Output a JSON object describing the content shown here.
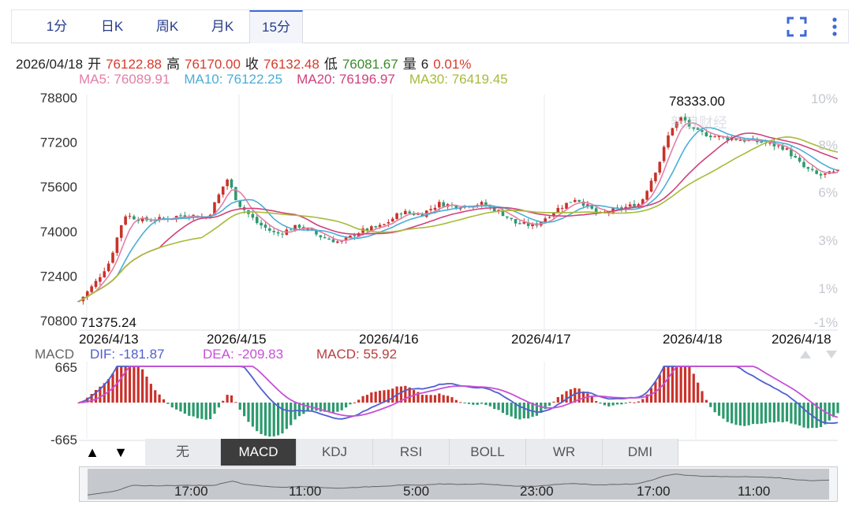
{
  "tabs": [
    {
      "label": "1分",
      "active": false
    },
    {
      "label": "日K",
      "active": false
    },
    {
      "label": "周K",
      "active": false
    },
    {
      "label": "月K",
      "active": false
    },
    {
      "label": "15分",
      "active": true
    }
  ],
  "toolbar": {
    "expand_icon": "expand-icon",
    "more_icon": "more-vertical-icon"
  },
  "info": {
    "date": "2026/04/18",
    "open_label": "开",
    "open": "76122.88",
    "high_label": "高",
    "high": "76170.00",
    "close_label": "收",
    "close": "76132.48",
    "low_label": "低",
    "low": "76081.67",
    "vol_label": "量",
    "vol": "6",
    "change": "0.01%"
  },
  "ma": [
    {
      "label": "MA5: 76089.91",
      "color": "#e27fa6"
    },
    {
      "label": "MA10: 76122.25",
      "color": "#4aaed8"
    },
    {
      "label": "MA20: 76196.97",
      "color": "#d0417a"
    },
    {
      "label": "MA30: 76419.45",
      "color": "#a8bb3a"
    }
  ],
  "macd_header": {
    "label": "MACD",
    "dif": "DIF: -181.87",
    "dea": "DEA: -209.83",
    "macd": "MACD: 55.92",
    "dif_color": "#4f5fd0",
    "dea_color": "#c84fd8",
    "macd_color": "#b83e3e"
  },
  "indicator_buttons": [
    "无",
    "MACD",
    "KDJ",
    "RSI",
    "BOLL",
    "WR",
    "DMI"
  ],
  "active_indicator": "MACD",
  "arrows": {
    "up": "▲",
    "down": "▼"
  },
  "navigator_labels": [
    "17:00",
    "11:00",
    "5:00",
    "23:00",
    "17:00",
    "11:00"
  ],
  "chart_data": [
    {
      "type": "candlestick",
      "title": "",
      "y_ticks": [
        78800,
        77200,
        75600,
        74000,
        72400,
        70800
      ],
      "y_labels": [
        "78800",
        "77200",
        "75600",
        "74000",
        "72400",
        "70800"
      ],
      "ylim": [
        70800,
        78800
      ],
      "right_ticks": [
        "10%",
        "8%",
        "6%",
        "3%",
        "1%",
        "-1%"
      ],
      "x_labels": [
        "2026/4/13",
        "2026/4/15",
        "2026/4/16",
        "2026/4/17",
        "2026/4/18",
        "2026/4/18"
      ],
      "max_label": "78333.00",
      "min_label": "71375.24",
      "watermark": "新浪财经",
      "colors": {
        "up": "#c9322a",
        "down": "#2c9a6e",
        "ma5": "#e27fa6",
        "ma10": "#4aaed8",
        "ma20": "#d0417a",
        "ma30": "#a8bb3a"
      },
      "price_path": [
        [
          0,
          71500
        ],
        [
          0.02,
          72100
        ],
        [
          0.04,
          72900
        ],
        [
          0.06,
          74600
        ],
        [
          0.085,
          74400
        ],
        [
          0.11,
          74450
        ],
        [
          0.14,
          74600
        ],
        [
          0.17,
          74500
        ],
        [
          0.195,
          75900
        ],
        [
          0.21,
          75000
        ],
        [
          0.235,
          74300
        ],
        [
          0.26,
          73900
        ],
        [
          0.29,
          74200
        ],
        [
          0.32,
          73800
        ],
        [
          0.345,
          73600
        ],
        [
          0.37,
          74000
        ],
        [
          0.4,
          74200
        ],
        [
          0.425,
          74700
        ],
        [
          0.45,
          74600
        ],
        [
          0.475,
          75000
        ],
        [
          0.5,
          74900
        ],
        [
          0.53,
          75000
        ],
        [
          0.555,
          74700
        ],
        [
          0.575,
          74300
        ],
        [
          0.6,
          74200
        ],
        [
          0.63,
          74800
        ],
        [
          0.655,
          75200
        ],
        [
          0.685,
          74600
        ],
        [
          0.71,
          74800
        ],
        [
          0.74,
          75000
        ],
        [
          0.765,
          76500
        ],
        [
          0.78,
          77700
        ],
        [
          0.795,
          78100
        ],
        [
          0.81,
          77600
        ],
        [
          0.84,
          77400
        ],
        [
          0.87,
          77300
        ],
        [
          0.9,
          77200
        ],
        [
          0.93,
          77000
        ],
        [
          0.955,
          76300
        ],
        [
          0.975,
          76000
        ],
        [
          1.0,
          76130
        ]
      ]
    },
    {
      "type": "macd",
      "y_ticks": [
        665,
        -665
      ],
      "y_labels": [
        "665",
        "-665"
      ],
      "ylim": [
        -665,
        665
      ]
    }
  ]
}
